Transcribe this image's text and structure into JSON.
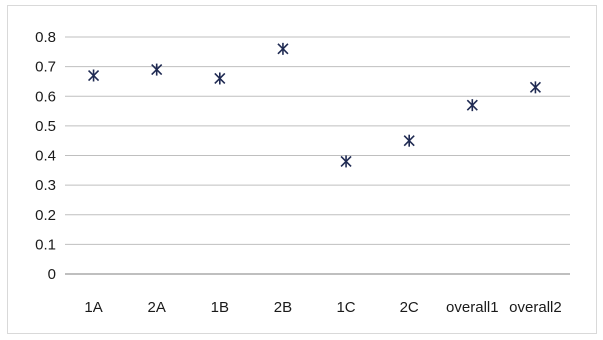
{
  "chart_data": {
    "type": "scatter",
    "categories": [
      "1A",
      "2A",
      "1B",
      "2B",
      "1C",
      "2C",
      "overall1",
      "overall2"
    ],
    "series": [
      {
        "values": [
          0.67,
          0.69,
          0.66,
          0.76,
          0.38,
          0.45,
          0.57,
          0.63
        ]
      }
    ],
    "ylim": [
      0,
      0.8
    ],
    "yticks": [
      "0",
      "0.1",
      "0.2",
      "0.3",
      "0.4",
      "0.5",
      "0.6",
      "0.7",
      "0.8"
    ],
    "title": "",
    "xlabel": "",
    "ylabel": "",
    "grid": true,
    "legend": "none",
    "marker_color": "#1f2a52",
    "marker_shape": "asterisk"
  }
}
